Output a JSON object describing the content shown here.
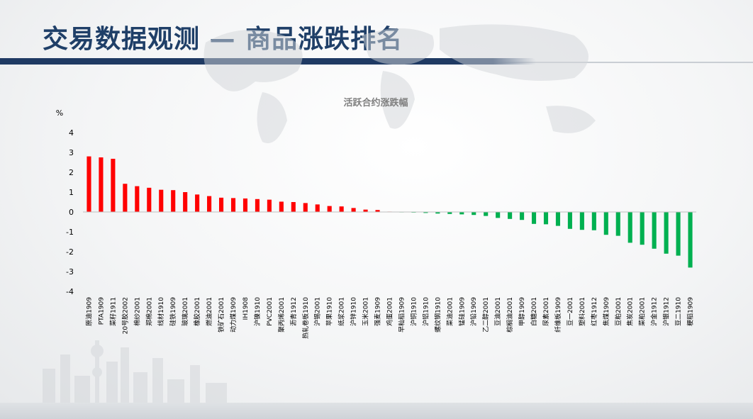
{
  "page": {
    "title": "交易数据观测 — 商品涨跌排名"
  },
  "chart_data": {
    "type": "bar",
    "title": "活跃合约涨跌幅",
    "ylabel": "%",
    "ylim": [
      -4,
      4
    ],
    "yticks": [
      4,
      3,
      2,
      1,
      0,
      -1,
      -2,
      -3,
      -4
    ],
    "grid": false,
    "legend": "none",
    "positive_color": "#ff0000",
    "negative_color": "#00b050",
    "categories": [
      "原油1909",
      "PTA1909",
      "菜籽1911",
      "20号胶2002",
      "棉纱2001",
      "郑棉2001",
      "线材1910",
      "硅铁1909",
      "玻璃2001",
      "橡胶2001",
      "燃油2001",
      "铁矿石2001",
      "动力煤1909",
      "IH1908",
      "沪镍1910",
      "PVC2001",
      "聚丙烯2001",
      "沥青1912",
      "热轧卷板1910",
      "沪锡2001",
      "苹果1910",
      "纸浆2001",
      "沪锌1910",
      "玉米2001",
      "强麦1909",
      "鸡蛋2001",
      "早籼稻1909",
      "沪铜1910",
      "沪铝1910",
      "螺纹钢1910",
      "菜油2001",
      "锰硅1909",
      "沪铅1909",
      "乙二醇2001",
      "豆油2001",
      "棕榈油2001",
      "甲醇1909",
      "白糖2001",
      "尿素2001",
      "纤维板1909",
      "豆一2001",
      "塑料2001",
      "红枣1912",
      "焦煤1909",
      "豆粕2001",
      "焦炭2001",
      "菜粕2001",
      "沪金1912",
      "沪银1912",
      "豆二1910",
      "粳稻1909"
    ],
    "values": [
      2.8,
      2.75,
      2.68,
      1.42,
      1.3,
      1.22,
      1.12,
      1.1,
      1.0,
      0.88,
      0.8,
      0.72,
      0.7,
      0.68,
      0.65,
      0.62,
      0.52,
      0.5,
      0.45,
      0.38,
      0.3,
      0.28,
      0.2,
      0.12,
      0.1,
      0.02,
      -0.02,
      -0.03,
      -0.05,
      -0.08,
      -0.1,
      -0.12,
      -0.15,
      -0.2,
      -0.3,
      -0.35,
      -0.4,
      -0.6,
      -0.62,
      -0.7,
      -0.85,
      -0.9,
      -0.92,
      -1.15,
      -1.2,
      -1.55,
      -1.65,
      -1.85,
      -2.1,
      -2.2,
      -2.8
    ]
  }
}
